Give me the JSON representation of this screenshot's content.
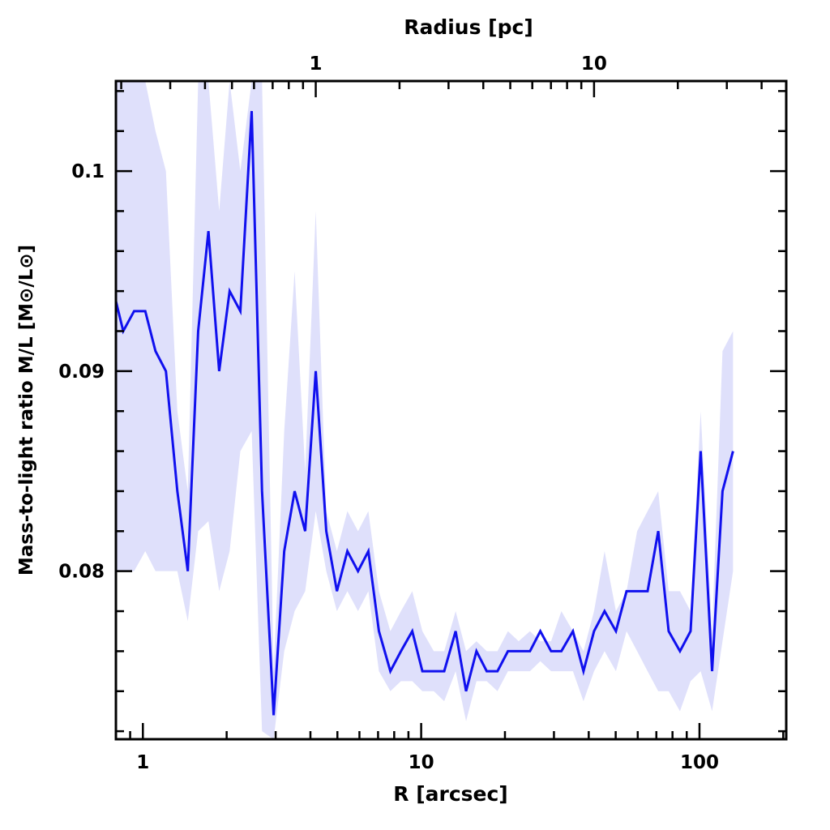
{
  "chart_data": {
    "type": "line",
    "xlabel": "R [arcsec]",
    "ylabel": "Mass-to-light ratio M/L [M⊙/L⊙]",
    "top_xlabel": "Radius [pc]",
    "xscale": "log",
    "xlim": [
      0.8,
      205
    ],
    "ylim": [
      0.0716,
      0.1045
    ],
    "arcsec_per_pc": 4.18,
    "x_ticks": [
      "1",
      "10",
      "100"
    ],
    "x_tick_values": [
      1,
      10,
      100
    ],
    "top_ticks": [
      "1",
      "10"
    ],
    "top_tick_values": [
      1,
      10
    ],
    "y_ticks": [
      "0.08",
      "0.09",
      "0.1"
    ],
    "y_tick_values": [
      0.08,
      0.09,
      0.1
    ],
    "colors": {
      "line": "#1010ee",
      "band": "#dfe0fb"
    },
    "x": [
      0.8,
      0.85,
      0.93,
      1.02,
      1.11,
      1.21,
      1.33,
      1.45,
      1.58,
      1.72,
      1.88,
      2.05,
      2.24,
      2.46,
      2.68,
      2.95,
      3.22,
      3.51,
      3.83,
      4.18,
      4.56,
      4.98,
      5.43,
      5.93,
      6.46,
      7.05,
      7.75,
      8.46,
      9.29,
      10.1,
      11.1,
      12.1,
      13.3,
      14.5,
      15.8,
      17.2,
      18.8,
      20.5,
      22.4,
      24.6,
      26.8,
      29.3,
      31.9,
      35.1,
      38.3,
      41.8,
      45.6,
      50.1,
      54.7,
      59.7,
      65.1,
      71.1,
      77.5,
      85.1,
      92.9,
      101,
      111,
      121,
      132
    ],
    "series": [
      {
        "name": "M/L",
        "values": [
          0.0935,
          0.092,
          0.093,
          0.093,
          0.091,
          0.09,
          0.084,
          0.08,
          0.092,
          0.097,
          0.09,
          0.094,
          0.093,
          0.103,
          0.084,
          0.0728,
          0.081,
          0.084,
          0.082,
          0.09,
          0.082,
          0.079,
          0.081,
          0.08,
          0.081,
          0.077,
          0.075,
          0.076,
          0.077,
          0.075,
          0.075,
          0.075,
          0.077,
          0.074,
          0.076,
          0.075,
          0.075,
          0.076,
          0.076,
          0.076,
          0.077,
          0.076,
          0.076,
          0.077,
          0.075,
          0.077,
          0.078,
          0.077,
          0.079,
          0.079,
          0.079,
          0.082,
          0.077,
          0.076,
          0.077,
          0.086,
          0.075,
          0.084,
          0.086
        ]
      },
      {
        "name": "upper",
        "values": [
          0.1045,
          0.1045,
          0.1045,
          0.1045,
          0.102,
          0.1,
          0.088,
          0.084,
          0.1045,
          0.1045,
          0.098,
          0.1045,
          0.1,
          0.1045,
          0.1045,
          0.075,
          0.087,
          0.095,
          0.085,
          0.098,
          0.083,
          0.081,
          0.083,
          0.082,
          0.083,
          0.079,
          0.077,
          0.078,
          0.079,
          0.077,
          0.076,
          0.076,
          0.078,
          0.076,
          0.0765,
          0.076,
          0.076,
          0.077,
          0.0765,
          0.077,
          0.0765,
          0.0765,
          0.078,
          0.077,
          0.076,
          0.078,
          0.081,
          0.078,
          0.079,
          0.082,
          0.083,
          0.084,
          0.079,
          0.079,
          0.078,
          0.088,
          0.077,
          0.091,
          0.092
        ]
      },
      {
        "name": "lower",
        "values": [
          0.08,
          0.08,
          0.08,
          0.081,
          0.08,
          0.08,
          0.08,
          0.0775,
          0.082,
          0.0825,
          0.079,
          0.081,
          0.086,
          0.087,
          0.072,
          0.0716,
          0.076,
          0.078,
          0.079,
          0.083,
          0.08,
          0.078,
          0.079,
          0.078,
          0.079,
          0.075,
          0.074,
          0.0745,
          0.0745,
          0.074,
          0.074,
          0.0735,
          0.075,
          0.0725,
          0.0745,
          0.0745,
          0.074,
          0.075,
          0.075,
          0.075,
          0.0755,
          0.075,
          0.075,
          0.075,
          0.0735,
          0.075,
          0.076,
          0.075,
          0.077,
          0.076,
          0.075,
          0.074,
          0.074,
          0.073,
          0.0745,
          0.075,
          0.073,
          0.0765,
          0.08
        ]
      }
    ]
  }
}
